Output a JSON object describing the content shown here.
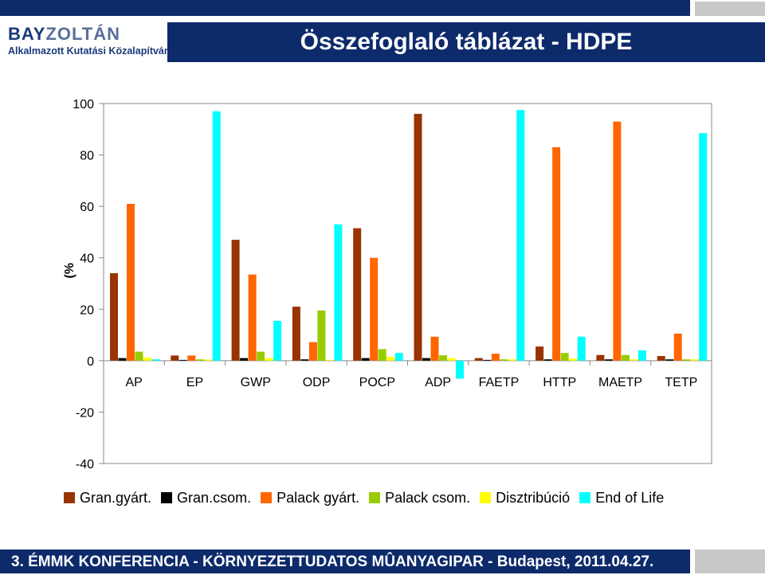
{
  "header": {
    "logo_brand": "BAY",
    "logo_brand2": "ZOLTÁN",
    "logo_sub": "Alkalmazott Kutatási Közalapítvány",
    "title": "Összefoglaló táblázat - HDPE"
  },
  "footer": {
    "text": "3. ÉMMK KONFERENCIA - KÖRNYEZETTUDATOS MÛANYAGIPAR - Budapest, 2011.04.27."
  },
  "colors": {
    "header_bg": "#0d2a6b",
    "gray_block": "#c8c8c8"
  },
  "chart_data": {
    "type": "bar",
    "title": "",
    "xlabel": "",
    "ylabel": "(%",
    "ylim": [
      -40,
      100
    ],
    "yticks": [
      100,
      80,
      60,
      40,
      20,
      0,
      -20,
      -40
    ],
    "categories": [
      "AP",
      "EP",
      "GWP",
      "ODP",
      "POCP",
      "ADP",
      "FAETP",
      "HTTP",
      "MAETP",
      "TETP"
    ],
    "series": [
      {
        "name": "Gran.gyárt.",
        "color": "#993300",
        "values": [
          34,
          2,
          47,
          21,
          51.5,
          96,
          1,
          5.5,
          2.2,
          1.8
        ]
      },
      {
        "name": "Gran.csom.",
        "color": "#000000",
        "values": [
          1,
          0.3,
          1,
          0.5,
          1,
          1,
          0.3,
          0.5,
          0.5,
          0.5
        ]
      },
      {
        "name": "Palack gyárt.",
        "color": "#ff6600",
        "values": [
          61,
          2,
          33.5,
          7.2,
          40,
          9.3,
          2.7,
          83,
          93,
          10.5
        ]
      },
      {
        "name": "Palack csom.",
        "color": "#99cc00",
        "values": [
          3.5,
          0.5,
          3.5,
          19.5,
          4.5,
          2.1,
          0.5,
          3,
          2.2,
          0.5
        ]
      },
      {
        "name": "Disztribúció",
        "color": "#ffff00",
        "values": [
          1.2,
          0.4,
          1,
          0.3,
          1.5,
          1,
          0.5,
          0.8,
          0.5,
          0.5
        ]
      },
      {
        "name": "End of Life",
        "color": "#00ffff",
        "values": [
          0.5,
          97,
          15.5,
          53,
          3,
          -7,
          97.5,
          9.3,
          4,
          88.5
        ]
      }
    ]
  }
}
